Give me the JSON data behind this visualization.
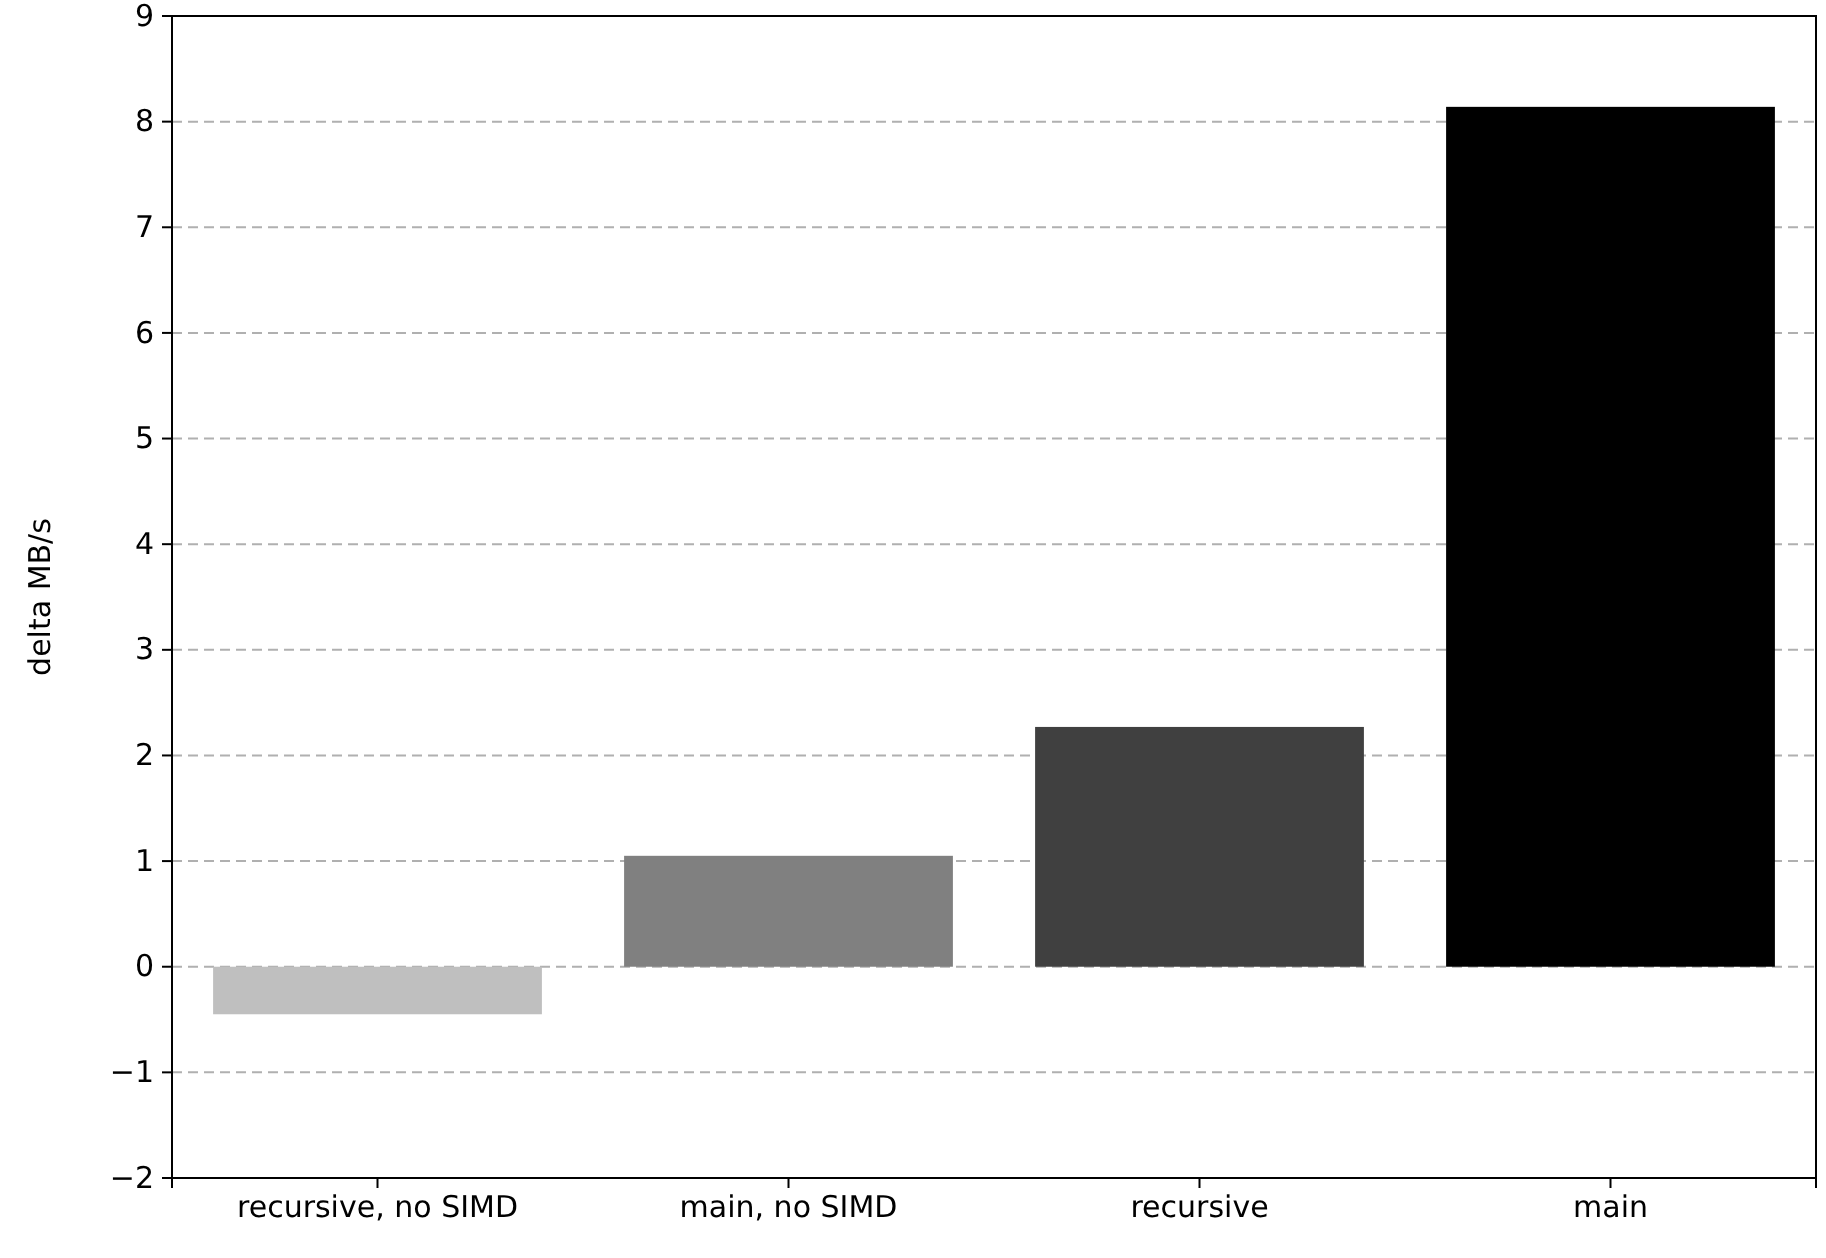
{
  "chart_data": {
    "type": "bar",
    "ylabel": "delta MB/s",
    "categories": [
      "recursive, no SIMD",
      "main, no SIMD",
      "recursive",
      "main"
    ],
    "values": [
      -0.45,
      1.05,
      2.27,
      8.14
    ],
    "colors": [
      "#bfbfbf",
      "#808080",
      "#404040",
      "#000000"
    ],
    "ylim": [
      -2,
      9
    ],
    "yticks": [
      {
        "value": -2,
        "label": "−2"
      },
      {
        "value": -1,
        "label": "−1"
      },
      0,
      1,
      2,
      3,
      4,
      5,
      6,
      7,
      8,
      9
    ],
    "grid": "y"
  }
}
